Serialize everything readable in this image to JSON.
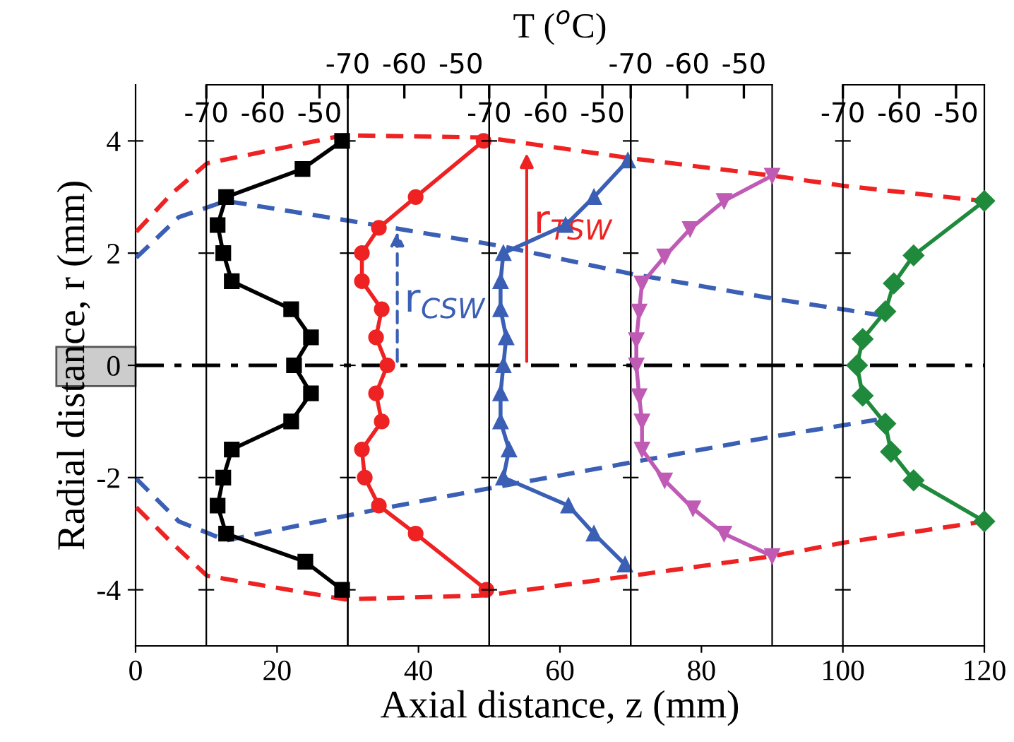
{
  "chart_data": [
    {
      "type": "line",
      "title": "T ($^{o}$C)",
      "xlabel": "Axial distance, z (mm)",
      "ylabel": "Radial distance, r (mm)",
      "xlim": [
        0,
        120
      ],
      "xticks": [
        0,
        20,
        40,
        60,
        80,
        100,
        120
      ],
      "ylim": [
        -5,
        5
      ],
      "yticks": [
        -4,
        -2,
        0,
        2,
        4
      ],
      "series": [
        {
          "color": "#ee2222",
          "line_style": "dashed",
          "x": [
            0.1,
            5.1,
            10.1,
            29.4,
            49.5,
            70.1,
            90.1,
            100.1,
            119.8
          ],
          "values": [
            2.38,
            3.06,
            3.6,
            4.1,
            4.06,
            3.69,
            3.38,
            3.2,
            2.93
          ]
        },
        {
          "color": "#ee2222",
          "line_style": "dashed",
          "x": [
            0.1,
            5.1,
            10.1,
            29.5,
            49.5,
            70.1,
            90.1,
            100.1,
            120
          ],
          "values": [
            -2.53,
            -3.16,
            -3.75,
            -4.17,
            -4.1,
            -3.75,
            -3.4,
            -3.16,
            -2.78
          ]
        },
        {
          "color": "#3a5fb5",
          "line_style": "dashed",
          "x": [
            0.1,
            6.1,
            12.8,
            34.5,
            51.5,
            70.1,
            90.1,
            105.5
          ],
          "values": [
            1.92,
            2.64,
            2.93,
            2.49,
            2.13,
            1.63,
            1.19,
            0.89
          ]
        },
        {
          "color": "#3a5fb5",
          "line_style": "dashed",
          "x": [
            0.1,
            6.1,
            12.8,
            34.1,
            48.8,
            70.1,
            90.1,
            104.8
          ],
          "values": [
            -2.02,
            -2.78,
            -3.12,
            -2.57,
            -2.22,
            -1.73,
            -1.27,
            -0.97
          ]
        }
      ],
      "ref_lines": [
        {
          "axis": "y",
          "value": 0,
          "color": "#000000",
          "line_style": "dashdot"
        }
      ],
      "annotations": [
        {
          "text": "r$_{CSW}$",
          "x": 37,
          "y": 2.45
        },
        {
          "text": "r$_{TSW}$",
          "x": 55.3,
          "y": 3.85
        }
      ]
    },
    {
      "type": "line",
      "xlim": [
        -70,
        -45
      ],
      "xticks": [
        -70,
        -60,
        -50
      ],
      "ylim": [
        -5,
        5
      ],
      "yticks": [
        {
          "value": -4,
          "label": null
        },
        {
          "value": -2,
          "label": null
        },
        {
          "value": 0,
          "label": null
        },
        {
          "value": 2,
          "label": null
        },
        {
          "value": 4,
          "label": null
        }
      ],
      "tick_labels": "x",
      "series": [
        {
          "color": "#000000",
          "marker": "square",
          "values": [
            4.0,
            3.5,
            3.0,
            2.5,
            2.0,
            1.5,
            1.0,
            0.5,
            0,
            -0.5,
            -1.0,
            -1.5,
            -2.0,
            -2.5,
            -3.0,
            -3.5,
            -4.0
          ],
          "x": [
            -46,
            -53,
            -66.5,
            -68,
            -67,
            -65.5,
            -55,
            -51.5,
            -54.5,
            -51.5,
            -55,
            -65.5,
            -67,
            -68,
            -66.5,
            -52.5,
            -46
          ]
        }
      ]
    },
    {
      "type": "line",
      "xlim": [
        -70,
        -45
      ],
      "xticks": [
        -70,
        -60,
        -50
      ],
      "ylim": [
        -5,
        5
      ],
      "yticks": [
        {
          "value": -4,
          "label": null
        },
        {
          "value": -2,
          "label": null
        },
        {
          "value": 0,
          "label": null
        },
        {
          "value": 2,
          "label": null
        },
        {
          "value": 4,
          "label": null
        }
      ],
      "tick_labels": "x",
      "series": [
        {
          "color": "#ee2222",
          "marker": "circle",
          "values": [
            4.0,
            3.0,
            2.45,
            2.0,
            1.5,
            1.0,
            0.5,
            0,
            -0.5,
            -1.0,
            -1.5,
            -2.0,
            -2.5,
            -3.0,
            -4.0
          ],
          "x": [
            -46,
            -58,
            -64.5,
            -67.5,
            -67.5,
            -64,
            -65,
            -63,
            -65,
            -64,
            -67.5,
            -67,
            -64.5,
            -58,
            -45.5
          ]
        }
      ]
    },
    {
      "type": "line",
      "xlim": [
        -70,
        -45
      ],
      "xticks": [
        -70,
        -60,
        -50
      ],
      "ylim": [
        -5,
        5
      ],
      "yticks": [
        {
          "value": -4,
          "label": null
        },
        {
          "value": -2,
          "label": null
        },
        {
          "value": 0,
          "label": null
        },
        {
          "value": 2,
          "label": null
        },
        {
          "value": 4,
          "label": null
        }
      ],
      "tick_labels": "x",
      "series": [
        {
          "color": "#3a5fb5",
          "marker": "triangle",
          "values": [
            3.65,
            3.0,
            2.5,
            2.0,
            1.5,
            1.0,
            0.5,
            0,
            -0.5,
            -1.0,
            -1.5,
            -2.0,
            -2.5,
            -3.0,
            -3.55
          ],
          "x": [
            -45.5,
            -51.5,
            -56.5,
            -67.5,
            -68,
            -68,
            -67,
            -67.5,
            -68,
            -68,
            -66.5,
            -67.5,
            -56,
            -51.5,
            -46
          ]
        }
      ]
    },
    {
      "type": "line",
      "xlim": [
        -70,
        -45
      ],
      "xticks": [
        -70,
        -60,
        -50
      ],
      "ylim": [
        -5,
        5
      ],
      "yticks": [
        {
          "value": -4,
          "label": null
        },
        {
          "value": -2,
          "label": null
        },
        {
          "value": 0,
          "label": null
        },
        {
          "value": 2,
          "label": null
        },
        {
          "value": 4,
          "label": null
        }
      ],
      "tick_labels": "x",
      "series": [
        {
          "color": "#c05bb5",
          "marker": "triangle_down",
          "values": [
            3.38,
            2.93,
            2.43,
            1.94,
            1.46,
            0.96,
            0.45,
            0,
            -0.55,
            -1.0,
            -1.5,
            -2.05,
            -2.55,
            -3.0,
            -3.4
          ],
          "x": [
            -45,
            -53.5,
            -59.5,
            -64,
            -68,
            -68.5,
            -69,
            -69,
            -68.5,
            -68,
            -68,
            -64,
            -59,
            -53.5,
            -45
          ]
        }
      ]
    },
    {
      "type": "line",
      "xlim": [
        -70,
        -45
      ],
      "xticks": [
        -70,
        -60,
        -50
      ],
      "ylim": [
        -5,
        5
      ],
      "yticks": [
        {
          "value": -4,
          "label": null
        },
        {
          "value": -2,
          "label": null
        },
        {
          "value": 0,
          "label": null
        },
        {
          "value": 2,
          "label": null
        },
        {
          "value": 4,
          "label": null
        }
      ],
      "tick_labels": "x",
      "series": [
        {
          "color": "#1f8a3c",
          "marker": "diamond",
          "values": [
            2.93,
            1.96,
            1.46,
            0.96,
            0.47,
            0,
            -0.54,
            -1.04,
            -1.54,
            -2.05,
            -2.78
          ],
          "x": [
            -45,
            -57.5,
            -61,
            -62.5,
            -66.5,
            -67.5,
            -66.5,
            -62.5,
            -61.5,
            -57.5,
            -45
          ]
        }
      ]
    }
  ]
}
